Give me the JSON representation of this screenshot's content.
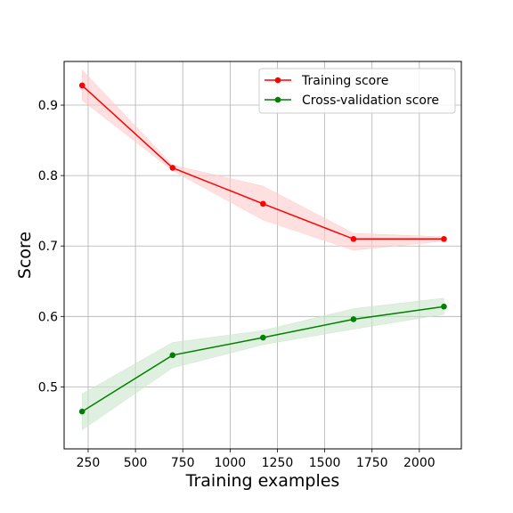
{
  "chart_data": {
    "type": "line",
    "title": "",
    "xlabel": "Training examples",
    "ylabel": "Score",
    "xlim": [
      123,
      2222
    ],
    "ylim": [
      0.412,
      0.962
    ],
    "x_ticks": [
      250,
      500,
      750,
      1000,
      1250,
      1500,
      1750,
      2000
    ],
    "y_ticks": [
      0.5,
      0.6,
      0.7,
      0.8,
      0.9
    ],
    "grid": true,
    "legend_position": "top-right",
    "x": [
      218,
      696,
      1174,
      1652,
      2130
    ],
    "series": [
      {
        "name": "Training score",
        "color": "#ff0000",
        "band_color": "#ffcccc",
        "values": [
          0.928,
          0.811,
          0.76,
          0.71,
          0.71
        ],
        "band_lower": [
          0.907,
          0.807,
          0.737,
          0.694,
          0.707
        ],
        "band_upper": [
          0.95,
          0.815,
          0.785,
          0.718,
          0.713
        ]
      },
      {
        "name": "Cross-validation score",
        "color": "#008000",
        "band_color": "#cce6cc",
        "values": [
          0.465,
          0.545,
          0.57,
          0.596,
          0.614
        ],
        "band_lower": [
          0.439,
          0.527,
          0.56,
          0.582,
          0.603
        ],
        "band_upper": [
          0.49,
          0.563,
          0.58,
          0.611,
          0.626
        ]
      }
    ]
  }
}
